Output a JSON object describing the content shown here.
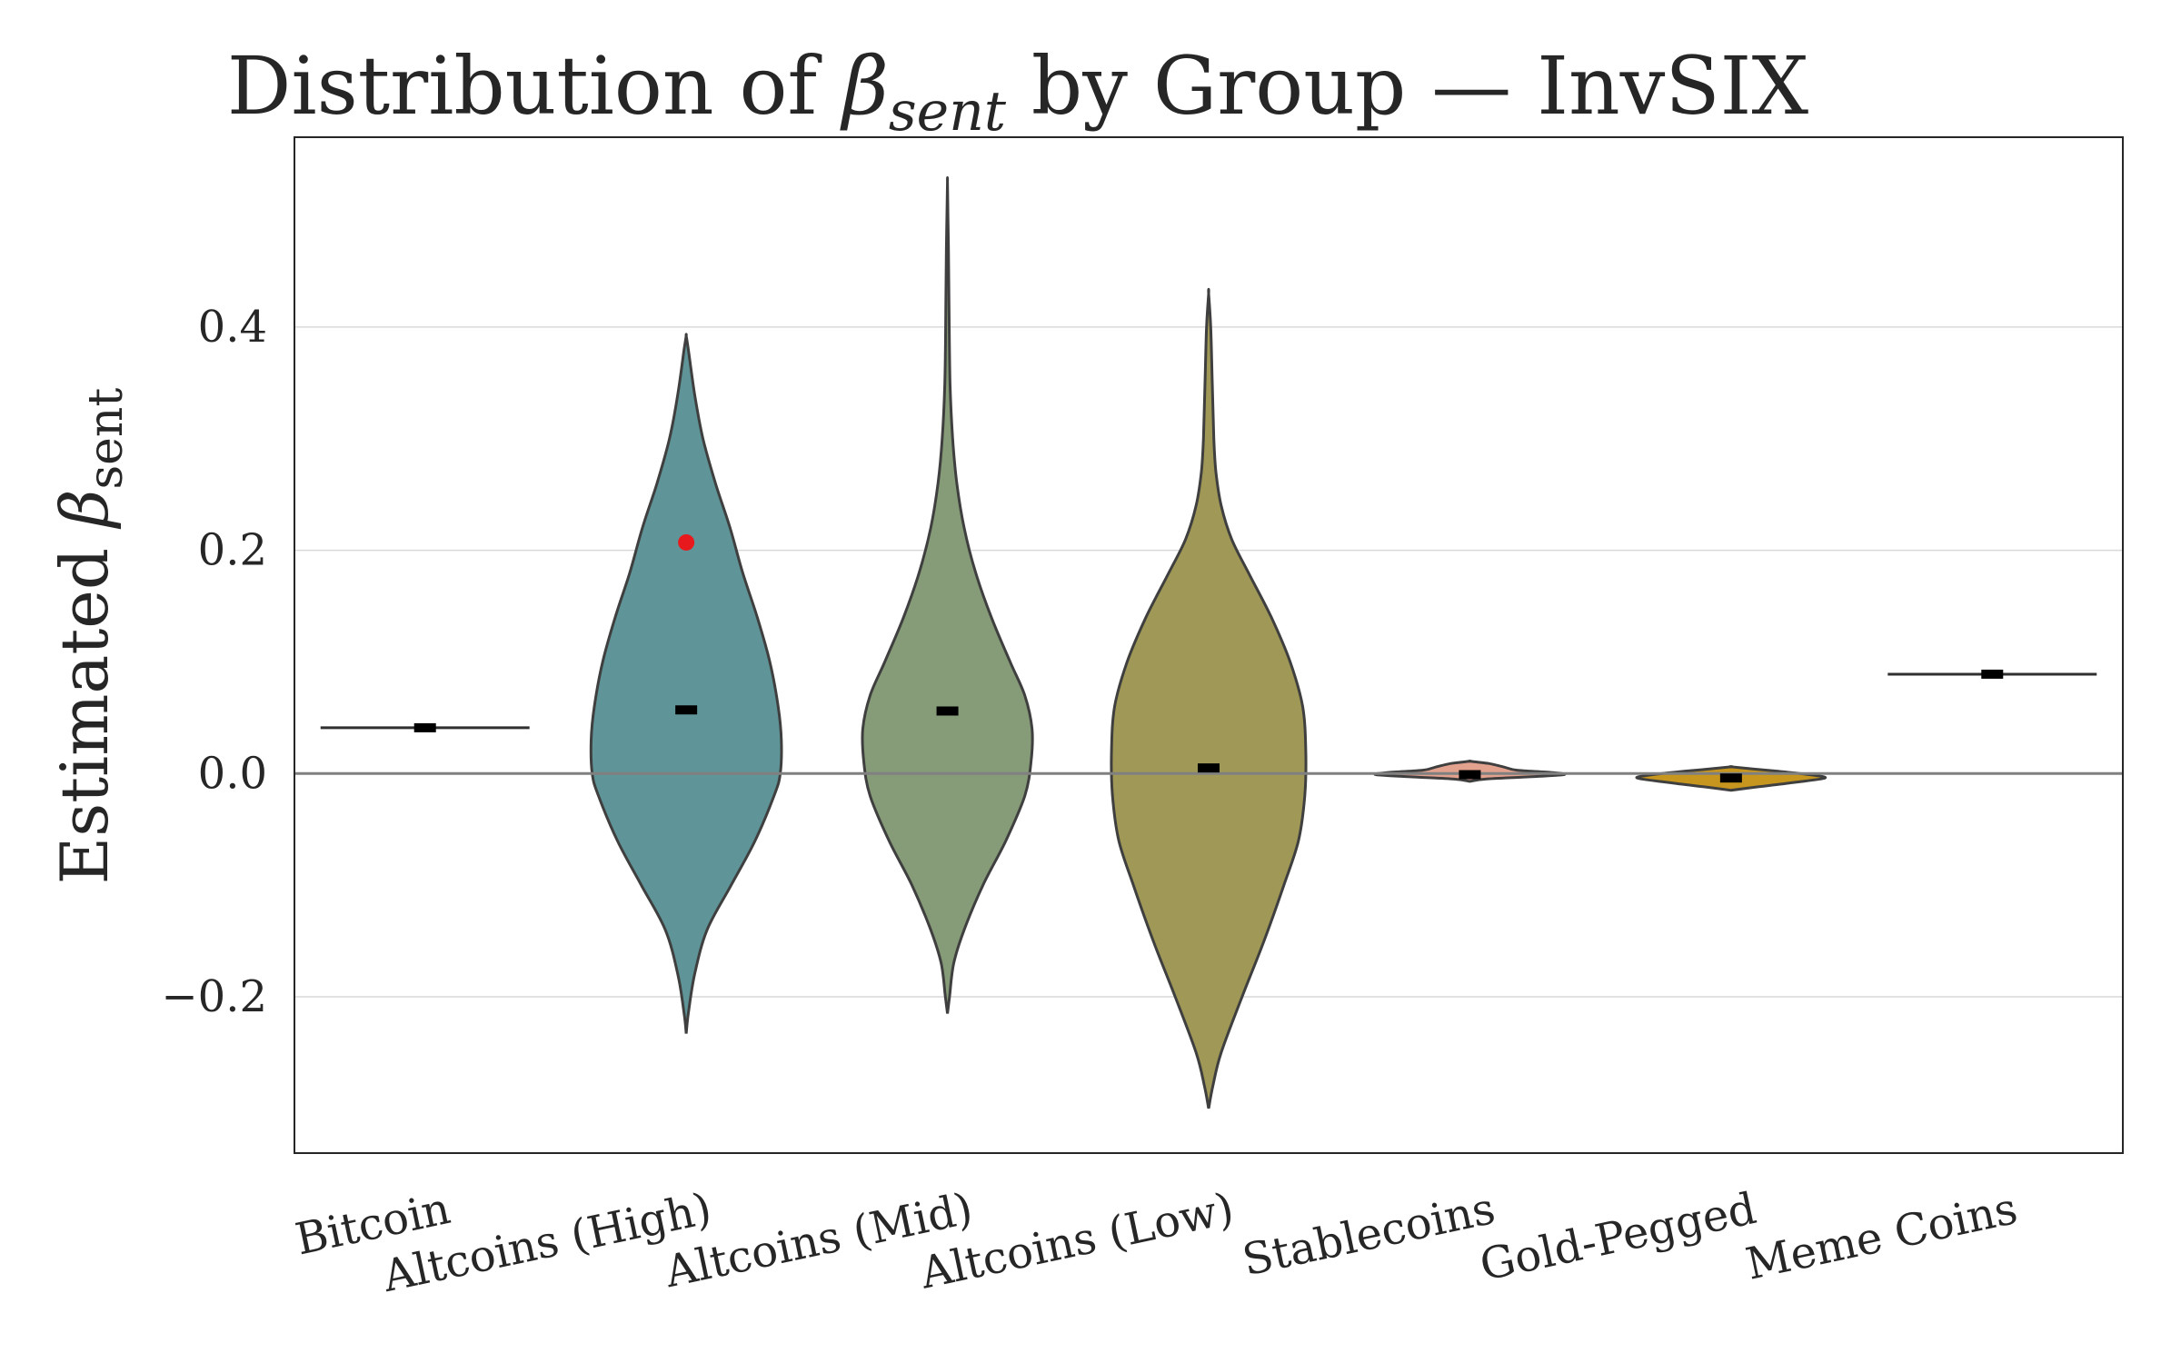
{
  "chart_data": {
    "type": "violin",
    "title_main": "Distribution of ",
    "title_symbol": "β",
    "title_subscript": "sent",
    "title_suffix": " by Group — InvSIX",
    "ylabel_main": "Estimated ",
    "ylabel_symbol": "β",
    "ylabel_subscript": "sent",
    "xlabel": "",
    "ylim": [
      -0.34,
      0.57
    ],
    "yticks": [
      -0.2,
      0.0,
      0.2,
      0.4
    ],
    "ytick_labels": [
      "−0.2",
      "0.0",
      "0.2",
      "0.4"
    ],
    "grid": true,
    "reference_line_y": 0.0,
    "categories": [
      "Bitcoin",
      "Altcoins (High)",
      "Altcoins (Mid)",
      "Altcoins (Low)",
      "Stablecoins",
      "Gold-Pegged",
      "Meme Coins"
    ],
    "groups": [
      {
        "name": "Bitcoin",
        "color": "#2f2f2f",
        "median": 0.041,
        "min": 0.041,
        "max": 0.041,
        "profile": []
      },
      {
        "name": "Altcoins (High)",
        "color": "#5f9598",
        "median": 0.057,
        "min": -0.233,
        "max": 0.392,
        "highlight_point": 0.207,
        "highlight_color": "#e8191c",
        "profile": [
          [
            -0.233,
            0
          ],
          [
            -0.215,
            0.02
          ],
          [
            -0.18,
            0.08
          ],
          [
            -0.14,
            0.2
          ],
          [
            -0.1,
            0.43
          ],
          [
            -0.06,
            0.66
          ],
          [
            -0.02,
            0.84
          ],
          [
            0.0,
            0.9
          ],
          [
            0.03,
            0.91
          ],
          [
            0.06,
            0.88
          ],
          [
            0.1,
            0.8
          ],
          [
            0.14,
            0.68
          ],
          [
            0.18,
            0.54
          ],
          [
            0.22,
            0.42
          ],
          [
            0.26,
            0.28
          ],
          [
            0.3,
            0.16
          ],
          [
            0.34,
            0.08
          ],
          [
            0.38,
            0.02
          ],
          [
            0.392,
            0
          ]
        ]
      },
      {
        "name": "Altcoins (Mid)",
        "color": "#869b78",
        "median": 0.056,
        "min": -0.215,
        "max": 0.53,
        "profile": [
          [
            -0.215,
            0
          ],
          [
            -0.2,
            0.02
          ],
          [
            -0.17,
            0.06
          ],
          [
            -0.14,
            0.16
          ],
          [
            -0.1,
            0.34
          ],
          [
            -0.06,
            0.56
          ],
          [
            -0.02,
            0.74
          ],
          [
            0.01,
            0.8
          ],
          [
            0.04,
            0.81
          ],
          [
            0.07,
            0.74
          ],
          [
            0.1,
            0.6
          ],
          [
            0.14,
            0.42
          ],
          [
            0.18,
            0.27
          ],
          [
            0.22,
            0.16
          ],
          [
            0.26,
            0.09
          ],
          [
            0.3,
            0.05
          ],
          [
            0.35,
            0.025
          ],
          [
            0.42,
            0.015
          ],
          [
            0.47,
            0.01
          ],
          [
            0.5,
            0.005
          ],
          [
            0.53,
            0
          ]
        ]
      },
      {
        "name": "Altcoins (Low)",
        "color": "#a09856",
        "median": 0.005,
        "min": -0.3,
        "max": 0.43,
        "profile": [
          [
            -0.3,
            0
          ],
          [
            -0.28,
            0.04
          ],
          [
            -0.25,
            0.12
          ],
          [
            -0.2,
            0.32
          ],
          [
            -0.15,
            0.53
          ],
          [
            -0.1,
            0.72
          ],
          [
            -0.06,
            0.86
          ],
          [
            -0.02,
            0.92
          ],
          [
            0.02,
            0.93
          ],
          [
            0.06,
            0.9
          ],
          [
            0.1,
            0.78
          ],
          [
            0.14,
            0.6
          ],
          [
            0.18,
            0.38
          ],
          [
            0.21,
            0.22
          ],
          [
            0.24,
            0.12
          ],
          [
            0.27,
            0.07
          ],
          [
            0.3,
            0.05
          ],
          [
            0.35,
            0.035
          ],
          [
            0.4,
            0.02
          ],
          [
            0.43,
            0
          ]
        ]
      },
      {
        "name": "Stablecoins",
        "color": "#e3a28e",
        "median": -0.001,
        "min": -0.007,
        "max": 0.011,
        "profile": [
          [
            -0.007,
            0
          ],
          [
            -0.005,
            0.15
          ],
          [
            -0.003,
            0.55
          ],
          [
            -0.001,
            0.9
          ],
          [
            0.001,
            0.78
          ],
          [
            0.003,
            0.45
          ],
          [
            0.006,
            0.32
          ],
          [
            0.009,
            0.18
          ],
          [
            0.011,
            0
          ]
        ]
      },
      {
        "name": "Gold-Pegged",
        "color": "#c7961e",
        "median": -0.004,
        "min": -0.015,
        "max": 0.006,
        "profile": [
          [
            -0.015,
            0
          ],
          [
            -0.012,
            0.25
          ],
          [
            -0.008,
            0.6
          ],
          [
            -0.004,
            0.9
          ],
          [
            -0.001,
            0.75
          ],
          [
            0.002,
            0.45
          ],
          [
            0.004,
            0.22
          ],
          [
            0.006,
            0
          ]
        ]
      },
      {
        "name": "Meme Coins",
        "color": "#2f2f2f",
        "median": 0.089,
        "min": 0.089,
        "max": 0.089,
        "profile": []
      }
    ]
  }
}
